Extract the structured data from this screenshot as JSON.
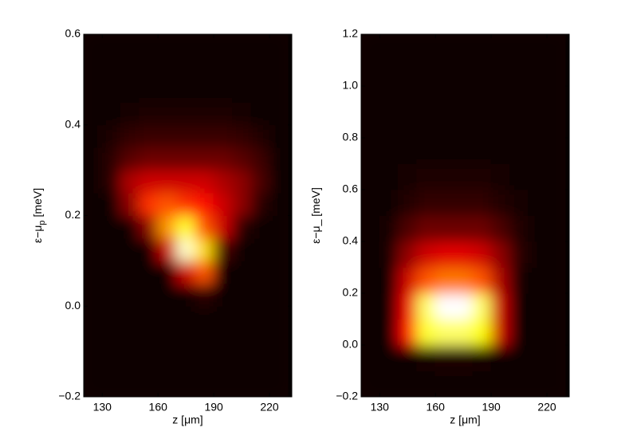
{
  "chart_data": [
    {
      "type": "heatmap",
      "colormap": "hot",
      "xlabel": "z [μm]",
      "ylabel": "ε−μ",
      "ylabel_subscript": "p",
      "ylabel_unit": "[meV]",
      "xlim": [
        120,
        232
      ],
      "ylim": [
        -0.2,
        0.6
      ],
      "xticks": [
        130,
        160,
        190,
        220
      ],
      "yticks": [
        {
          "value": -0.2,
          "label": "−0.2"
        },
        {
          "value": 0,
          "label": "0.0"
        },
        0.2,
        0.4,
        0.6
      ],
      "x": [
        125,
        135,
        145,
        155,
        165,
        175,
        185,
        195,
        205,
        215,
        225
      ],
      "y": [
        -0.175,
        -0.125,
        -0.075,
        -0.025,
        0.025,
        0.075,
        0.125,
        0.175,
        0.225,
        0.275,
        0.325,
        0.375,
        0.425,
        0.475,
        0.525,
        0.575
      ],
      "z": [
        [
          0,
          0,
          0,
          0,
          0,
          0,
          0,
          0,
          0,
          0,
          0
        ],
        [
          0,
          0,
          0,
          0,
          0,
          0,
          0,
          0,
          0,
          0,
          0
        ],
        [
          0,
          0,
          0,
          0,
          0,
          0,
          0,
          0,
          0,
          0,
          0
        ],
        [
          0,
          0,
          0,
          0,
          0,
          0,
          0,
          0,
          0,
          0,
          0
        ],
        [
          0,
          0,
          0,
          0,
          0,
          0,
          0.05,
          0,
          0,
          0,
          0
        ],
        [
          0,
          0,
          0,
          0,
          0,
          0.3,
          0.5,
          0,
          0,
          0,
          0
        ],
        [
          0,
          0,
          0,
          0,
          0.3,
          0.95,
          0.7,
          0.1,
          0,
          0,
          0
        ],
        [
          0,
          0,
          0,
          0.2,
          0.6,
          0.8,
          0.5,
          0.3,
          0.05,
          0,
          0
        ],
        [
          0,
          0,
          0.2,
          0.45,
          0.5,
          0.45,
          0.4,
          0.3,
          0.2,
          0.05,
          0
        ],
        [
          0,
          0.05,
          0.25,
          0.3,
          0.3,
          0.3,
          0.3,
          0.25,
          0.2,
          0.1,
          0
        ],
        [
          0,
          0.05,
          0.12,
          0.15,
          0.15,
          0.15,
          0.15,
          0.15,
          0.12,
          0.08,
          0
        ],
        [
          0,
          0.03,
          0.06,
          0.07,
          0.07,
          0.07,
          0.07,
          0.07,
          0.06,
          0.04,
          0
        ],
        [
          0,
          0,
          0.02,
          0.03,
          0.03,
          0.03,
          0.03,
          0.03,
          0.02,
          0.01,
          0
        ],
        [
          0,
          0,
          0,
          0,
          0,
          0,
          0,
          0,
          0,
          0,
          0
        ],
        [
          0,
          0,
          0,
          0,
          0,
          0,
          0,
          0,
          0,
          0,
          0
        ],
        [
          0,
          0,
          0,
          0,
          0,
          0,
          0,
          0,
          0,
          0,
          0
        ]
      ]
    },
    {
      "type": "heatmap",
      "colormap": "hot",
      "xlabel": "z [μm]",
      "ylabel": "ε−μ_ [meV]",
      "xlim": [
        120,
        232
      ],
      "ylim": [
        -0.2,
        1.2
      ],
      "xticks": [
        130,
        160,
        190,
        220
      ],
      "yticks": [
        {
          "value": -0.2,
          "label": "−0.2"
        },
        {
          "value": 0,
          "label": "0.0"
        },
        0.2,
        0.4,
        0.6,
        0.8,
        {
          "value": 1,
          "label": "1.0"
        },
        1.2
      ],
      "x": [
        125,
        135,
        145,
        155,
        165,
        175,
        185,
        195,
        205,
        215,
        225
      ],
      "y": [
        -0.15,
        -0.05,
        0.05,
        0.15,
        0.25,
        0.35,
        0.45,
        0.55,
        0.65,
        0.75,
        0.85,
        0.95,
        1.05,
        1.15
      ],
      "z": [
        [
          0,
          0,
          0,
          0,
          0,
          0,
          0,
          0,
          0,
          0,
          0
        ],
        [
          0,
          0,
          0,
          0.02,
          0.03,
          0.03,
          0.02,
          0,
          0,
          0,
          0
        ],
        [
          0,
          0,
          0.4,
          0.8,
          0.85,
          0.85,
          0.75,
          0.3,
          0,
          0,
          0
        ],
        [
          0,
          0,
          0.35,
          0.85,
          1,
          1,
          0.85,
          0.3,
          0,
          0,
          0
        ],
        [
          0,
          0,
          0.3,
          0.5,
          0.55,
          0.55,
          0.5,
          0.25,
          0.02,
          0,
          0
        ],
        [
          0,
          0.02,
          0.2,
          0.3,
          0.33,
          0.33,
          0.3,
          0.2,
          0.05,
          0,
          0
        ],
        [
          0,
          0.02,
          0.1,
          0.15,
          0.15,
          0.15,
          0.15,
          0.1,
          0.04,
          0,
          0
        ],
        [
          0,
          0.01,
          0.04,
          0.06,
          0.06,
          0.06,
          0.06,
          0.04,
          0.02,
          0,
          0
        ],
        [
          0,
          0,
          0.02,
          0.03,
          0.03,
          0.03,
          0.03,
          0.02,
          0.01,
          0,
          0
        ],
        [
          0,
          0,
          0,
          0,
          0,
          0,
          0,
          0,
          0,
          0,
          0
        ],
        [
          0,
          0,
          0,
          0,
          0,
          0,
          0,
          0,
          0,
          0,
          0
        ],
        [
          0,
          0,
          0,
          0,
          0,
          0,
          0,
          0,
          0,
          0,
          0
        ],
        [
          0,
          0,
          0,
          0,
          0,
          0,
          0,
          0,
          0,
          0,
          0
        ],
        [
          0,
          0,
          0,
          0,
          0,
          0,
          0,
          0,
          0,
          0,
          0
        ]
      ]
    }
  ]
}
